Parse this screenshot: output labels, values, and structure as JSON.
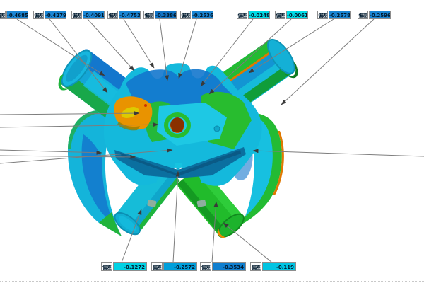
{
  "viewport": {
    "background": "#ffffff"
  },
  "annotation": {
    "prefix_label": "偏差",
    "colors": {
      "deviation_blue": "#1b86d4",
      "deviation_blue_dark": "#1173c4",
      "deviation_cyan": "#00dce6",
      "label_box_bg": "#ffffff",
      "label_border": "#8d8d8d",
      "leader_line": "#7d7d7d"
    },
    "top_labels": [
      {
        "value": "-0.4685",
        "bg": "#1b86d4"
      },
      {
        "value": "-0.4279",
        "bg": "#1b86d4"
      },
      {
        "value": "-0.4091",
        "bg": "#1b86d4"
      },
      {
        "value": "-0.4753",
        "bg": "#1b86d4"
      },
      {
        "value": "-0.3386",
        "bg": "#1173c4"
      },
      {
        "value": "-0.2536",
        "bg": "#1b86d4"
      },
      {
        "value": "-0.0248",
        "bg": "#00dce6"
      },
      {
        "value": "-0.0061",
        "bg": "#00dce6"
      },
      {
        "value": "-0.2578",
        "bg": "#1b86d4"
      },
      {
        "value": "-0.2596",
        "bg": "#1b86d4"
      }
    ],
    "bottom_labels": [
      {
        "value": "-0.1272",
        "bg": "#00d2e4"
      },
      {
        "value": "-0.2572",
        "bg": "#009fdb"
      },
      {
        "value": "-0.3534",
        "bg": "#0f7ecf"
      },
      {
        "value": "-0.119",
        "bg": "#00c4e2"
      }
    ]
  },
  "model_palette": {
    "cyan": "#14b9dc",
    "green": "#24ba32",
    "blue": "#1377cd",
    "dark_teal": "#0b6f9f",
    "orange": "#e99300",
    "yellow": "#ddca00",
    "hole_dark_red": "#8a3000"
  }
}
